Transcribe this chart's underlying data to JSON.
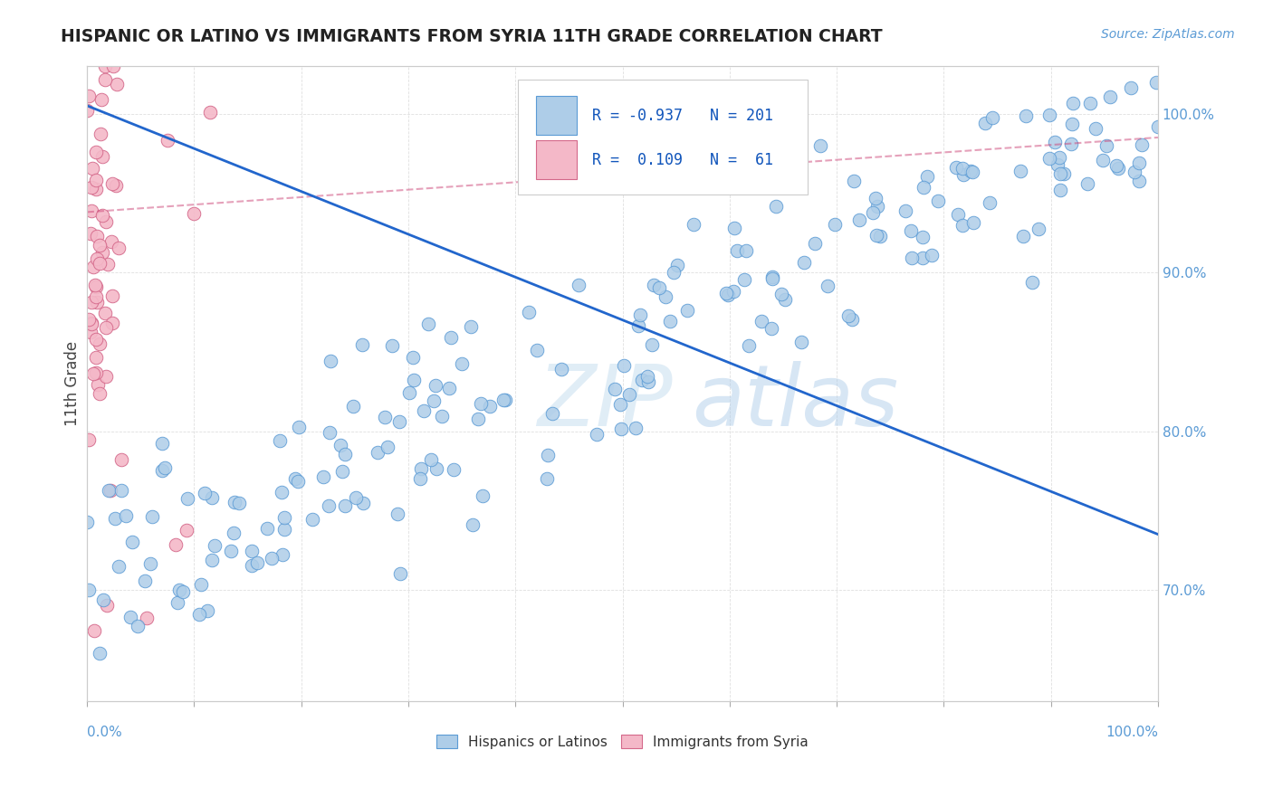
{
  "title": "HISPANIC OR LATINO VS IMMIGRANTS FROM SYRIA 11TH GRADE CORRELATION CHART",
  "source_text": "Source: ZipAtlas.com",
  "ylabel": "11th Grade",
  "legend_blue_label": "Hispanics or Latinos",
  "legend_pink_label": "Immigrants from Syria",
  "R_blue": -0.937,
  "N_blue": 201,
  "R_pink": 0.109,
  "N_pink": 61,
  "blue_color": "#aecde8",
  "blue_edge_color": "#5b9bd5",
  "pink_color": "#f4b8c8",
  "pink_edge_color": "#d4688a",
  "trend_blue_color": "#2266cc",
  "trend_pink_color": "#cc4477",
  "background_color": "#ffffff",
  "watermark_color": "#cce0f0",
  "seed": 42,
  "xlim": [
    0.0,
    1.0
  ],
  "ylim": [
    0.63,
    1.03
  ],
  "ytick_positions": [
    0.7,
    0.8,
    0.9,
    1.0
  ],
  "ytick_labels": [
    "70.0%",
    "80.0%",
    "90.0%",
    "100.0%"
  ],
  "blue_trend_start_y": 1.005,
  "blue_trend_end_y": 0.735,
  "pink_trend_start_x": 0.0,
  "pink_trend_start_y": 0.938,
  "pink_trend_end_x": 1.0,
  "pink_trend_end_y": 0.985
}
